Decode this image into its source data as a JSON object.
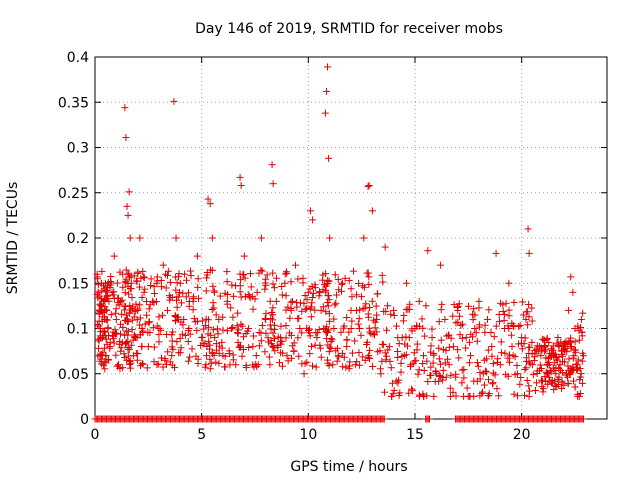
{
  "chart_data": {
    "type": "scatter",
    "title": "Day 146 of 2019, SRMTID for receiver mobs",
    "xlabel": "GPS time / hours",
    "ylabel": "SRMTID / TECUs",
    "xlim": [
      0,
      24
    ],
    "ylim": [
      0,
      0.4
    ],
    "x_ticks": [
      0,
      5,
      10,
      15,
      20
    ],
    "x_tick_labels": [
      "0",
      "5",
      "10",
      "15",
      "20"
    ],
    "y_ticks": [
      0,
      0.05,
      0.1,
      0.15,
      0.2,
      0.25,
      0.3,
      0.35,
      0.4
    ],
    "y_tick_labels": [
      "0",
      "0.05",
      "0.1",
      "0.15",
      "0.2",
      "0.25",
      "0.3",
      "0.35",
      "0.4"
    ],
    "grid": true,
    "marker": "+",
    "color": "#e00000",
    "series": [
      {
        "name": "SRMTID",
        "points": [
          [
            0.1,
            0.16
          ],
          [
            0.15,
            0.14
          ],
          [
            0.2,
            0.12
          ],
          [
            0.25,
            0.1
          ],
          [
            0.3,
            0.15
          ],
          [
            0.35,
            0.09
          ],
          [
            0.4,
            0.13
          ],
          [
            0.45,
            0.11
          ],
          [
            0.5,
            0.07
          ],
          [
            0.55,
            0.12
          ],
          [
            0.6,
            0.1
          ],
          [
            0.7,
            0.08
          ],
          [
            0.8,
            0.14
          ],
          [
            0.9,
            0.18
          ],
          [
            1.0,
            0.11
          ],
          [
            1.1,
            0.06
          ],
          [
            1.2,
            0.13
          ],
          [
            1.3,
            0.16
          ],
          [
            1.4,
            0.344
          ],
          [
            1.45,
            0.311
          ],
          [
            1.5,
            0.235
          ],
          [
            1.55,
            0.225
          ],
          [
            1.6,
            0.251
          ],
          [
            1.65,
            0.2
          ],
          [
            1.7,
            0.15
          ],
          [
            1.8,
            0.07
          ],
          [
            1.9,
            0.09
          ],
          [
            2.0,
            0.12
          ],
          [
            2.1,
            0.2
          ],
          [
            2.2,
            0.1
          ],
          [
            2.3,
            0.14
          ],
          [
            2.5,
            0.08
          ],
          [
            2.7,
            0.13
          ],
          [
            2.9,
            0.15
          ],
          [
            3.0,
            0.1
          ],
          [
            3.2,
            0.17
          ],
          [
            3.4,
            0.12
          ],
          [
            3.6,
            0.07
          ],
          [
            3.7,
            0.351
          ],
          [
            3.8,
            0.2
          ],
          [
            3.9,
            0.11
          ],
          [
            4.0,
            0.15
          ],
          [
            4.2,
            0.16
          ],
          [
            4.4,
            0.1
          ],
          [
            4.6,
            0.13
          ],
          [
            4.8,
            0.18
          ],
          [
            5.0,
            0.09
          ],
          [
            5.2,
            0.06
          ],
          [
            5.3,
            0.243
          ],
          [
            5.4,
            0.238
          ],
          [
            5.5,
            0.2
          ],
          [
            5.6,
            0.14
          ],
          [
            5.8,
            0.11
          ],
          [
            6.0,
            0.07
          ],
          [
            6.2,
            0.13
          ],
          [
            6.4,
            0.1
          ],
          [
            6.6,
            0.06
          ],
          [
            6.8,
            0.267
          ],
          [
            6.85,
            0.258
          ],
          [
            7.0,
            0.18
          ],
          [
            7.2,
            0.1
          ],
          [
            7.4,
            0.08
          ],
          [
            7.6,
            0.14
          ],
          [
            7.8,
            0.2
          ],
          [
            8.0,
            0.11
          ],
          [
            8.2,
            0.06
          ],
          [
            8.3,
            0.281
          ],
          [
            8.35,
            0.26
          ],
          [
            8.5,
            0.13
          ],
          [
            8.7,
            0.09
          ],
          [
            8.9,
            0.15
          ],
          [
            9.0,
            0.07
          ],
          [
            9.2,
            0.12
          ],
          [
            9.4,
            0.17
          ],
          [
            9.6,
            0.1
          ],
          [
            9.8,
            0.05
          ],
          [
            10.0,
            0.14
          ],
          [
            10.1,
            0.23
          ],
          [
            10.2,
            0.22
          ],
          [
            10.4,
            0.09
          ],
          [
            10.6,
            0.12
          ],
          [
            10.8,
            0.338
          ],
          [
            10.85,
            0.362
          ],
          [
            10.9,
            0.389
          ],
          [
            10.95,
            0.288
          ],
          [
            11.0,
            0.2
          ],
          [
            11.2,
            0.1
          ],
          [
            11.4,
            0.07
          ],
          [
            11.6,
            0.15
          ],
          [
            11.8,
            0.08
          ],
          [
            12.0,
            0.12
          ],
          [
            12.2,
            0.06
          ],
          [
            12.4,
            0.1
          ],
          [
            12.6,
            0.2
          ],
          [
            12.8,
            0.257
          ],
          [
            12.85,
            0.258
          ],
          [
            13.0,
            0.23
          ],
          [
            13.2,
            0.11
          ],
          [
            13.4,
            0.05
          ],
          [
            13.6,
            0.19
          ],
          [
            13.8,
            0.08
          ],
          [
            14.0,
            0.12
          ],
          [
            14.2,
            0.04
          ],
          [
            14.4,
            0.09
          ],
          [
            14.6,
            0.15
          ],
          [
            14.8,
            0.06
          ],
          [
            15.0,
            0.1
          ],
          [
            15.2,
            0.13
          ],
          [
            15.4,
            0.07
          ],
          [
            15.6,
            0.186
          ],
          [
            15.8,
            0.09
          ],
          [
            16.0,
            0.05
          ],
          [
            16.2,
            0.17
          ],
          [
            16.4,
            0.11
          ],
          [
            16.6,
            0.06
          ],
          [
            16.8,
            0.08
          ],
          [
            17.0,
            0.12
          ],
          [
            17.2,
            0.04
          ],
          [
            17.4,
            0.09
          ],
          [
            17.6,
            0.07
          ],
          [
            17.8,
            0.1
          ],
          [
            18.0,
            0.13
          ],
          [
            18.2,
            0.05
          ],
          [
            18.4,
            0.11
          ],
          [
            18.6,
            0.08
          ],
          [
            18.8,
            0.183
          ],
          [
            19.0,
            0.06
          ],
          [
            19.2,
            0.1
          ],
          [
            19.4,
            0.15
          ],
          [
            19.6,
            0.07
          ],
          [
            19.8,
            0.05
          ],
          [
            20.0,
            0.09
          ],
          [
            20.2,
            0.11
          ],
          [
            20.3,
            0.21
          ],
          [
            20.35,
            0.183
          ],
          [
            20.5,
            0.06
          ],
          [
            20.7,
            0.04
          ],
          [
            20.9,
            0.07
          ],
          [
            21.0,
            0.03
          ],
          [
            21.1,
            0.08
          ],
          [
            21.2,
            0.05
          ],
          [
            21.3,
            0.06
          ],
          [
            21.4,
            0.04
          ],
          [
            21.5,
            0.07
          ],
          [
            21.6,
            0.05
          ],
          [
            21.7,
            0.09
          ],
          [
            21.8,
            0.06
          ],
          [
            21.9,
            0.04
          ],
          [
            22.0,
            0.08
          ],
          [
            22.1,
            0.05
          ],
          [
            22.2,
            0.12
          ],
          [
            22.3,
            0.157
          ],
          [
            22.4,
            0.14
          ],
          [
            22.5,
            0.1
          ],
          [
            22.6,
            0.06
          ],
          [
            22.7,
            0.025
          ],
          [
            22.8,
            0.11
          ],
          [
            22.9,
            0.07
          ]
        ]
      }
    ],
    "zero_band": [
      [
        0.0,
        13.6
      ],
      [
        15.5,
        15.7
      ],
      [
        16.9,
        22.9
      ]
    ]
  }
}
